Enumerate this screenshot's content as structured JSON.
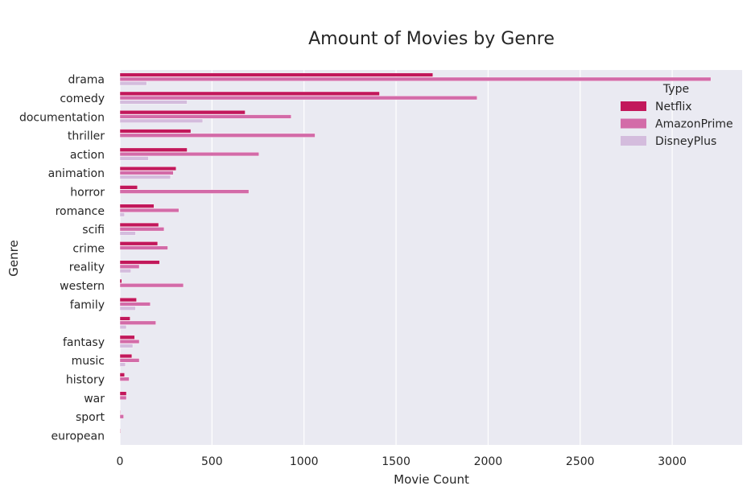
{
  "chart_data": {
    "type": "bar",
    "orientation": "horizontal",
    "title": "Amount of Movies by Genre",
    "xlabel": "Movie Count",
    "ylabel": "Genre",
    "xlim": [
      0,
      3380
    ],
    "xticks": [
      0,
      500,
      1000,
      1500,
      2000,
      2500,
      3000
    ],
    "grid": true,
    "legend": {
      "title": "Type",
      "placement": "top-right"
    },
    "categories": [
      "drama",
      "comedy",
      "documentation",
      "thriller",
      "action",
      "animation",
      "horror",
      "romance",
      "scifi",
      "crime",
      "reality",
      "western",
      "family",
      "",
      "fantasy",
      "music",
      "history",
      "war",
      "sport",
      "european"
    ],
    "series": [
      {
        "name": "Netflix",
        "color": "#c2185b",
        "values": [
          1700,
          1410,
          680,
          385,
          365,
          305,
          95,
          185,
          210,
          205,
          215,
          10,
          90,
          55,
          80,
          65,
          25,
          35,
          2,
          2
        ]
      },
      {
        "name": "AmazonPrime",
        "color": "#d36ba8",
        "values": [
          3210,
          1940,
          930,
          1060,
          755,
          290,
          700,
          320,
          240,
          260,
          105,
          345,
          165,
          195,
          105,
          105,
          50,
          35,
          20,
          0
        ]
      },
      {
        "name": "DisneyPlus",
        "color": "#d4bcdd",
        "values": [
          145,
          365,
          450,
          0,
          155,
          275,
          0,
          25,
          85,
          0,
          60,
          0,
          85,
          35,
          70,
          30,
          0,
          0,
          0,
          0
        ]
      }
    ]
  }
}
